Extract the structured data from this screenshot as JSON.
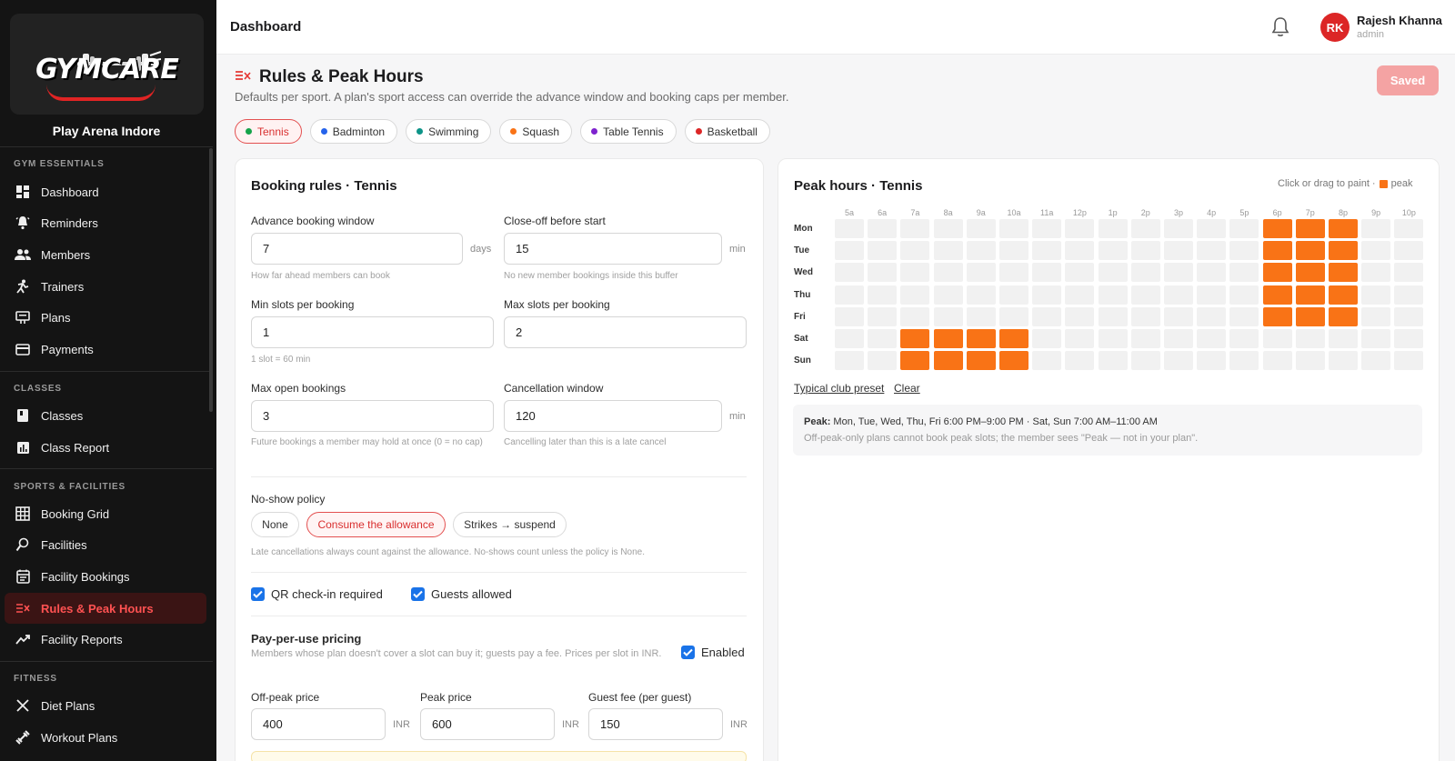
{
  "sidebar": {
    "logo_text": "GYMCARE",
    "arena": "Play Arena Indore",
    "sections": [
      "GYM ESSENTIALS",
      "CLASSES",
      "SPORTS & FACILITIES",
      "FITNESS"
    ],
    "items": [
      {
        "label": "Dashboard",
        "icon": "dashboard-icon"
      },
      {
        "label": "Reminders",
        "icon": "bell-ring-icon"
      },
      {
        "label": "Members",
        "icon": "people-icon"
      },
      {
        "label": "Trainers",
        "icon": "trainer-icon"
      },
      {
        "label": "Plans",
        "icon": "plans-icon"
      },
      {
        "label": "Payments",
        "icon": "card-icon"
      },
      {
        "label": "Classes",
        "icon": "book-icon"
      },
      {
        "label": "Class Report",
        "icon": "chart-icon"
      },
      {
        "label": "Booking Grid",
        "icon": "grid-icon"
      },
      {
        "label": "Facilities",
        "icon": "facility-icon"
      },
      {
        "label": "Facility Bookings",
        "icon": "calendar-list-icon"
      },
      {
        "label": "Rules & Peak Hours",
        "icon": "rules-icon",
        "active": true
      },
      {
        "label": "Facility Reports",
        "icon": "trend-icon"
      },
      {
        "label": "Diet Plans",
        "icon": "utensils-icon"
      },
      {
        "label": "Workout Plans",
        "icon": "dumbbell-icon"
      }
    ]
  },
  "topbar": {
    "title": "Dashboard",
    "user_initials": "RK",
    "user_name": "Rajesh Khanna",
    "user_role": "admin"
  },
  "page": {
    "title": "Rules & Peak Hours",
    "subtitle": "Defaults per sport. A plan's sport access can override the advance window and booking caps per member.",
    "saved_label": "Saved",
    "sports": [
      {
        "label": "Tennis",
        "color": "#16a34a",
        "active": true
      },
      {
        "label": "Badminton",
        "color": "#2563eb"
      },
      {
        "label": "Swimming",
        "color": "#0d9488"
      },
      {
        "label": "Squash",
        "color": "#f97316"
      },
      {
        "label": "Table Tennis",
        "color": "#7e22ce"
      },
      {
        "label": "Basketball",
        "color": "#dc2626"
      }
    ]
  },
  "booking_rules": {
    "title": "Booking rules · Tennis",
    "advance_label": "Advance booking window",
    "advance_value": "7",
    "advance_unit": "days",
    "advance_hint": "How far ahead members can book",
    "closeoff_label": "Close-off before start",
    "closeoff_value": "15",
    "closeoff_unit": "min",
    "closeoff_hint": "No new member bookings inside this buffer",
    "min_slots_label": "Min slots per booking",
    "min_slots_value": "1",
    "min_slots_hint": "1 slot = 60 min",
    "max_slots_label": "Max slots per booking",
    "max_slots_value": "2",
    "max_open_label": "Max open bookings",
    "max_open_value": "3",
    "max_open_hint": "Future bookings a member may hold at once (0 = no cap)",
    "cancel_label": "Cancellation window",
    "cancel_value": "120",
    "cancel_unit": "min",
    "cancel_hint": "Cancelling later than this is a late cancel",
    "noshow_label": "No-show policy",
    "noshow_options": [
      "None",
      "Consume the allowance",
      "Strikes → suspend"
    ],
    "noshow_hint": "Late cancellations always count against the allowance. No-shows count unless the policy is None.",
    "qr_label": "QR check-in required",
    "guests_label": "Guests allowed",
    "ppu_title": "Pay-per-use pricing",
    "ppu_desc": "Members whose plan doesn't cover a slot can buy it; guests pay a fee. Prices per slot in INR.",
    "ppu_enabled_label": "Enabled",
    "offpeak_label": "Off-peak price",
    "offpeak_value": "400",
    "peak_label": "Peak price",
    "peak_value": "600",
    "guestfee_label": "Guest fee (per guest)",
    "guestfee_value": "150",
    "currency": "INR"
  },
  "peak_hours": {
    "title": "Peak hours · Tennis",
    "hint": "Click or drag to paint ·",
    "hint_legend": "peak",
    "hours": [
      "5a",
      "6a",
      "7a",
      "8a",
      "9a",
      "10a",
      "11a",
      "12p",
      "1p",
      "2p",
      "3p",
      "4p",
      "5p",
      "6p",
      "7p",
      "8p",
      "9p",
      "10p"
    ],
    "days": [
      "Mon",
      "Tue",
      "Wed",
      "Thu",
      "Fri",
      "Sat",
      "Sun"
    ],
    "peak_cells": {
      "Mon": [
        "6p",
        "7p",
        "8p"
      ],
      "Tue": [
        "6p",
        "7p",
        "8p"
      ],
      "Wed": [
        "6p",
        "7p",
        "8p"
      ],
      "Thu": [
        "6p",
        "7p",
        "8p"
      ],
      "Fri": [
        "6p",
        "7p",
        "8p"
      ],
      "Sat": [
        "7a",
        "8a",
        "9a",
        "10a"
      ],
      "Sun": [
        "7a",
        "8a",
        "9a",
        "10a"
      ]
    },
    "preset_link": "Typical club preset",
    "clear_link": "Clear",
    "summary_label": "Peak:",
    "summary_text": "Mon, Tue, Wed, Thu, Fri 6:00 PM–9:00 PM · Sat, Sun 7:00 AM–11:00 AM",
    "summary_note": "Off-peak-only plans cannot book peak slots; the member sees \"Peak — not in your plan\"."
  }
}
